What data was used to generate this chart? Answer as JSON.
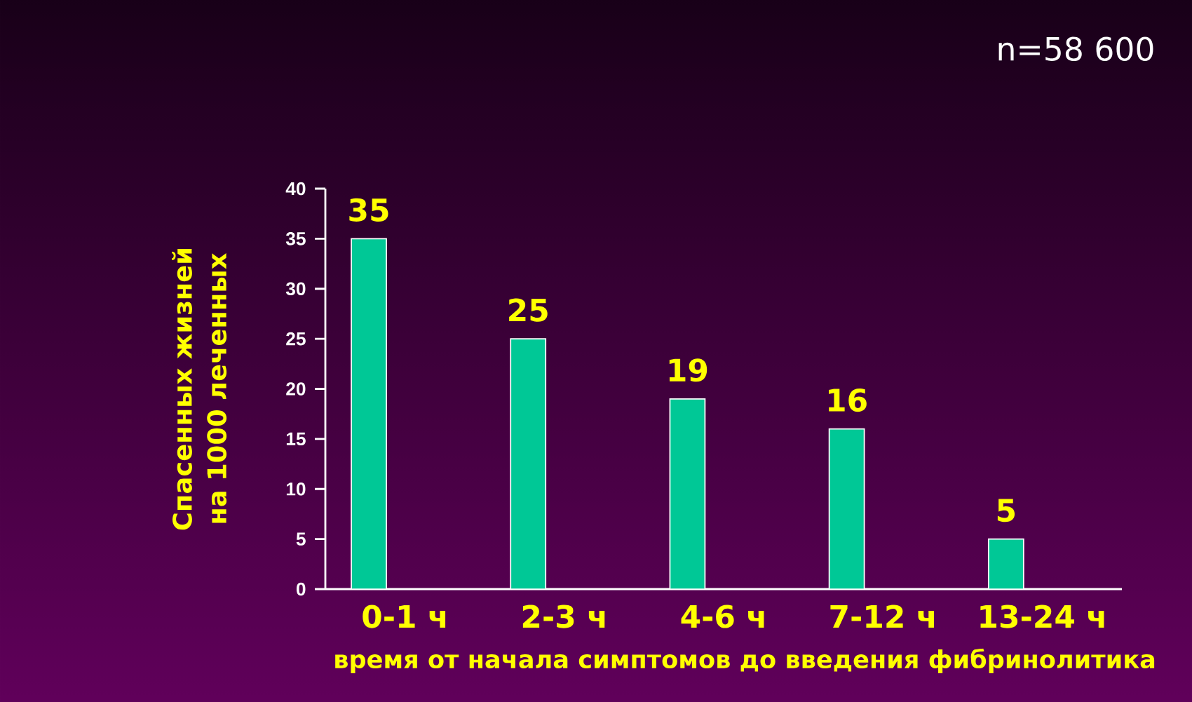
{
  "chart_data": {
    "type": "bar",
    "xlabel": "время от начала симптомов до введения фибринолитика",
    "ylabel": "Спасенных  жизней на 1000 леченных",
    "categories": [
      "0-1 ч",
      "2-3 ч",
      "4-6 ч",
      "7-12 ч",
      "13-24 ч"
    ],
    "values": [
      35,
      25,
      19,
      16,
      5
    ],
    "color": "#00c896",
    "ylim": [
      0,
      40
    ],
    "yticks": [
      0,
      5,
      10,
      15,
      20,
      25,
      30,
      35,
      40
    ],
    "data_labels": true,
    "grid": false,
    "annotations": [
      "n=58 600"
    ]
  }
}
